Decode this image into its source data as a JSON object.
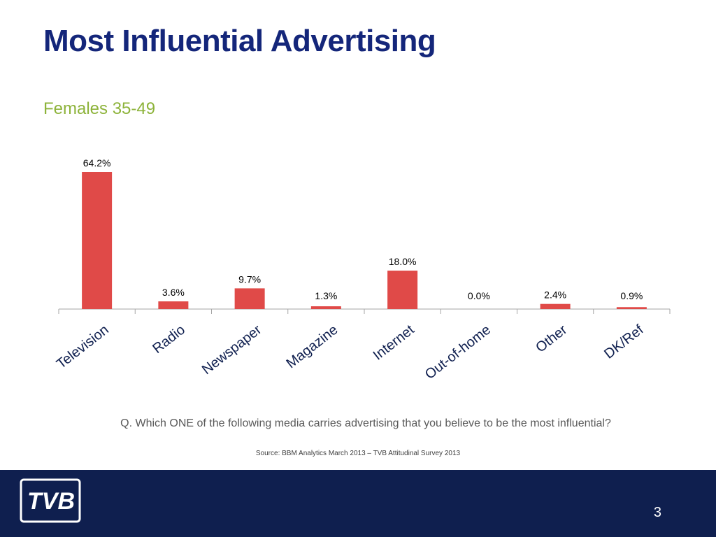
{
  "slide": {
    "title": "Most Influential Advertising",
    "subtitle": "Females 35-49",
    "question": "Q. Which ONE of the following media carries advertising that you believe to be the most influential?",
    "source": "Source: BBM Analytics March 2013 – TVB Attitudinal Survey 2013",
    "page_number": "3",
    "logo_text": "TVB"
  },
  "colors": {
    "title": "#14267a",
    "subtitle": "#8db33a",
    "bar": "#e04a48",
    "footer": "#0f1f4f"
  },
  "chart_data": {
    "type": "bar",
    "categories": [
      "Television",
      "Radio",
      "Newspaper",
      "Magazine",
      "Internet",
      "Out-of-home",
      "Other",
      "DK/Ref"
    ],
    "values": [
      64.2,
      3.6,
      9.7,
      1.3,
      18.0,
      0.0,
      2.4,
      0.9
    ],
    "data_labels": [
      "64.2%",
      "3.6%",
      "9.7%",
      "1.3%",
      "18.0%",
      "0.0%",
      "2.4%",
      "0.9%"
    ],
    "title": "",
    "xlabel": "",
    "ylabel": "",
    "ylim": [
      0,
      64.2
    ],
    "grid": false,
    "legend": "none"
  }
}
